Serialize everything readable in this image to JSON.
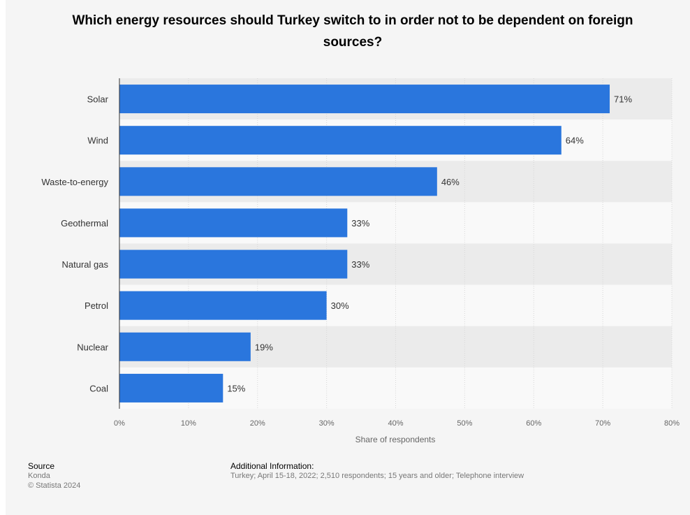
{
  "chart_data": {
    "type": "bar",
    "orientation": "horizontal",
    "title": "Which energy resources should Turkey switch to in order not to be dependent on foreign sources?",
    "categories": [
      "Solar",
      "Wind",
      "Waste-to-energy",
      "Geothermal",
      "Natural gas",
      "Petrol",
      "Nuclear",
      "Coal"
    ],
    "values": [
      71,
      64,
      46,
      33,
      33,
      30,
      19,
      15
    ],
    "data_labels": [
      "71%",
      "64%",
      "46%",
      "33%",
      "33%",
      "30%",
      "19%",
      "15%"
    ],
    "xlabel": "Share of respondents",
    "xlim": [
      0,
      80
    ],
    "x_ticks": [
      "0%",
      "10%",
      "20%",
      "30%",
      "40%",
      "50%",
      "60%",
      "70%",
      "80%"
    ],
    "grid": true,
    "colors": {
      "bar": "#2a76dd",
      "band": "#ebebeb",
      "grid": "#d8d8d8"
    }
  },
  "footer": {
    "source_heading": "Source",
    "source_name": "Konda",
    "copyright": "© Statista 2024",
    "info_heading": "Additional Information:",
    "info_text": "Turkey; April 15-18, 2022; 2,510 respondents; 15 years and older; Telephone interview"
  }
}
